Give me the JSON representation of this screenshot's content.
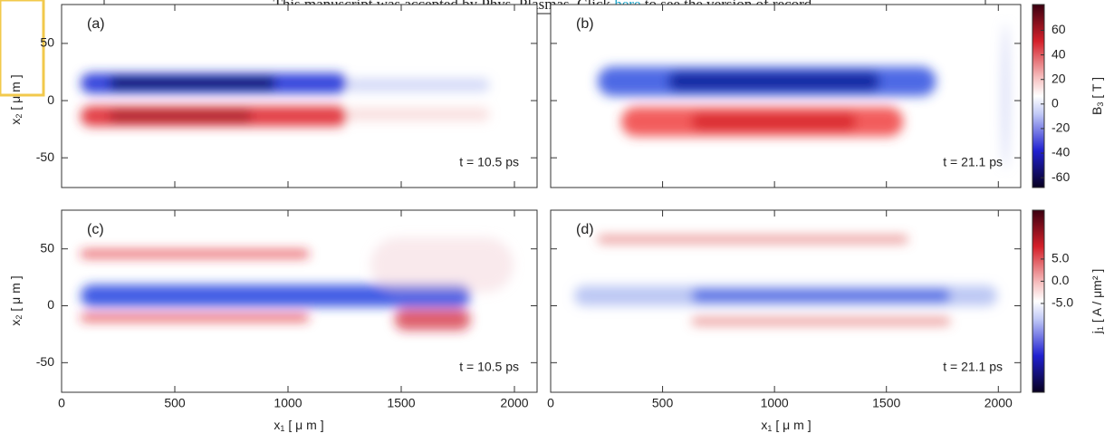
{
  "banner": {
    "before": "This manuscript was accepted by Phys. Plasmas. Click",
    "link": "here",
    "after": "to see the version of record."
  },
  "x_axis": {
    "symbol": "x",
    "sub": "1",
    "unit": "[ μ m ]",
    "lim": [
      0,
      2100
    ],
    "ticks": [
      0,
      500,
      1000,
      1500,
      2000
    ]
  },
  "y_axis": {
    "symbol": "x",
    "sub": "2",
    "unit": "[ μ m ]",
    "lim": [
      -76,
      84
    ],
    "ticks": [
      50,
      0,
      -50
    ]
  },
  "panels": [
    {
      "label": "(a)",
      "time": "t = 10.5 ps"
    },
    {
      "label": "(b)",
      "time": "t = 21.1 ps"
    },
    {
      "label": "(c)",
      "time": "t = 10.5 ps"
    },
    {
      "label": "(d)",
      "time": "t = 21.1 ps"
    }
  ],
  "colorbars": [
    {
      "symbol": "B",
      "sub": "3",
      "unit": "[ T ]",
      "lim": [
        -68,
        81
      ],
      "ticks": [
        60,
        40,
        20,
        0,
        -20,
        -40,
        -60
      ]
    },
    {
      "symbol": "j",
      "sub": "1",
      "unit": "[ A / μm² ]",
      "lim": [
        -25,
        16
      ],
      "ticks": [
        {
          "value": 5,
          "label": "5.0"
        },
        {
          "value": 0,
          "label": "0.0"
        },
        {
          "value": -5,
          "label": "-5.0"
        }
      ]
    }
  ]
}
